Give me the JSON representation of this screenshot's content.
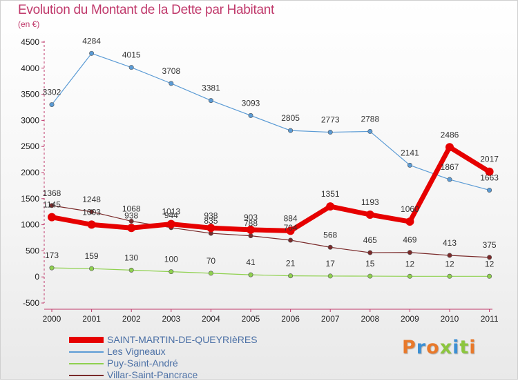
{
  "chart_data": {
    "type": "line",
    "title": "Evolution du Montant de la Dette par Habitant",
    "subtitle": "(en €)",
    "x": [
      "2000",
      "2001",
      "2002",
      "2003",
      "2004",
      "2005",
      "2006",
      "2007",
      "2008",
      "2009",
      "2010",
      "2011"
    ],
    "yticks": [
      "4500",
      "4000",
      "3500",
      "3000",
      "2500",
      "2000",
      "1500",
      "1000",
      "500",
      "0",
      "-500"
    ],
    "ylim": [
      -500,
      4500
    ],
    "grid": false,
    "legend_position": "bottom-left",
    "series": [
      {
        "name": "SAINT-MARTIN-DE-QUEYRIèRES",
        "color": "#e60000",
        "values": [
          1145,
          1003,
          938,
          1013,
          938,
          903,
          884,
          1351,
          1193,
          1060,
          2486,
          2017
        ],
        "labels": [
          "1145",
          "1003",
          "938",
          "1013",
          "938",
          "903",
          "884",
          "1351",
          "1193",
          "1060",
          "2486",
          "2017"
        ]
      },
      {
        "name": "Les Vigneaux",
        "color": "#5b9bd5",
        "values": [
          3302,
          4284,
          4015,
          3708,
          3381,
          3093,
          2805,
          2773,
          2788,
          2141,
          1867,
          1663
        ],
        "labels": [
          "3302",
          "4284",
          "4015",
          "3708",
          "3381",
          "3093",
          "2805",
          "2773",
          "2788",
          "2141",
          "1867",
          "1663"
        ]
      },
      {
        "name": "Puy-Saint-André",
        "color": "#8fd14f",
        "values": [
          173,
          159,
          130,
          100,
          70,
          41,
          21,
          17,
          15,
          12,
          12,
          12
        ],
        "labels": [
          "173",
          "159",
          "130",
          "100",
          "70",
          "41",
          "21",
          "17",
          "15",
          "12",
          "12",
          "12"
        ]
      },
      {
        "name": "Villar-Saint-Pancrace",
        "color": "#7a2a2a",
        "values": [
          1368,
          1248,
          1068,
          944,
          835,
          788,
          704,
          568,
          465,
          469,
          413,
          375
        ],
        "labels": [
          "1368",
          "1248",
          "1068",
          "944",
          "835",
          "788",
          "704",
          "568",
          "465",
          "469",
          "413",
          "375"
        ]
      }
    ]
  },
  "logo_text": "Proxiti",
  "logo_colors": [
    "#e8792b",
    "#3b8fd4",
    "#e8792b",
    "#8cc63f",
    "#3b8fd4",
    "#8cc63f",
    "#e8792b"
  ]
}
